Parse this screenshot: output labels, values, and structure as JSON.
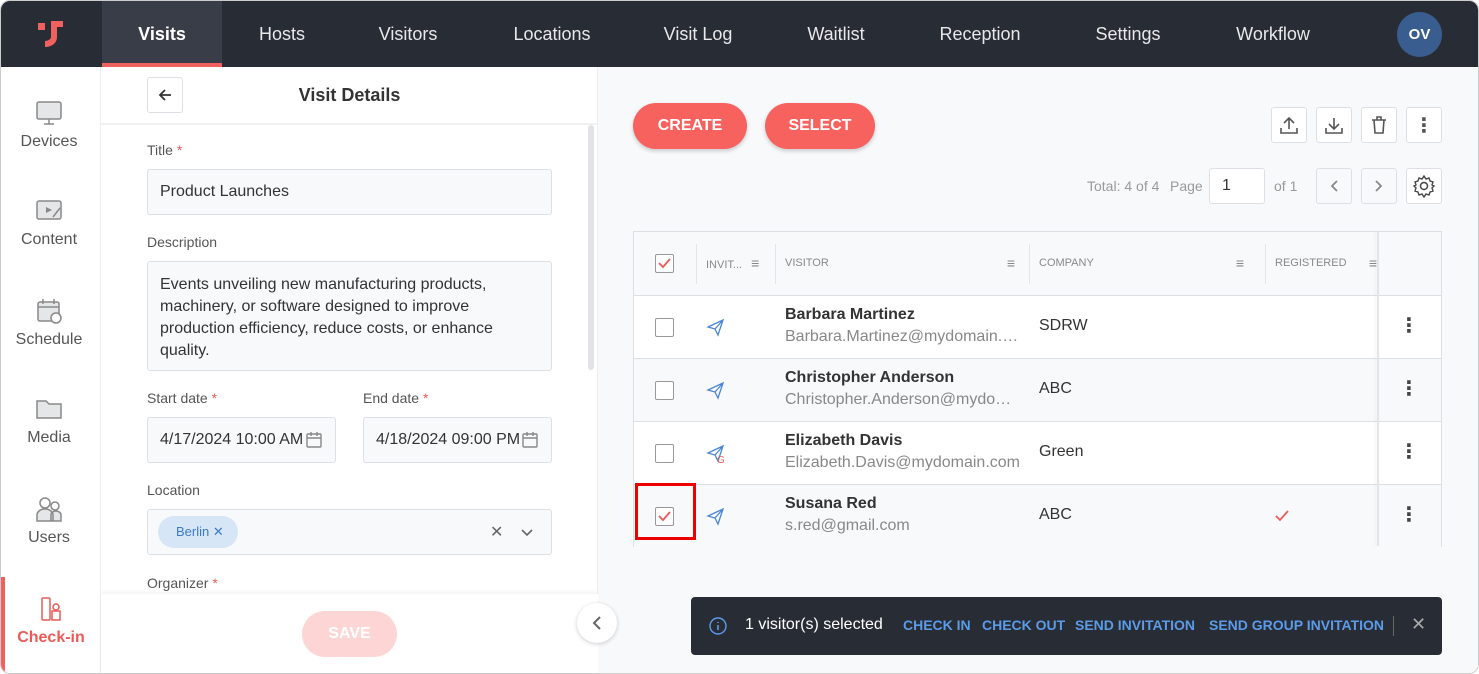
{
  "nav": {
    "items": [
      "Visits",
      "Hosts",
      "Visitors",
      "Locations",
      "Visit Log",
      "Waitlist",
      "Reception",
      "Settings",
      "Workflow"
    ],
    "active": "Visits",
    "avatar": "OV"
  },
  "sidebar": {
    "items": [
      "Devices",
      "Content",
      "Schedule",
      "Media",
      "Users",
      "Check-in"
    ],
    "active": "Check-in"
  },
  "form": {
    "title": "Visit Details",
    "title_label": "Title",
    "title_value": "Product Launches",
    "description_label": "Description",
    "description_value": "Events unveiling new manufacturing products, machinery, or software designed to improve production efficiency, reduce costs, or enhance quality.",
    "start_label": "Start date",
    "start_value": "4/17/2024 10:00 AM",
    "end_label": "End date",
    "end_value": "4/18/2024 09:00 PM",
    "location_label": "Location",
    "location_chip": "Berlin",
    "organizer_label": "Organizer",
    "required_mark": "*",
    "save": "SAVE"
  },
  "toolbar": {
    "create": "CREATE",
    "select": "SELECT",
    "total": "Total: 4 of 4",
    "page_label": "Page",
    "page_value": "1",
    "of": "of 1"
  },
  "table": {
    "headers": [
      "INVIT...",
      "VISITOR",
      "COMPANY",
      "REGISTERED"
    ],
    "rows": [
      {
        "name": "Barbara Martinez",
        "email": "Barbara.Martinez@mydomain.com",
        "company": "SDRW",
        "checked": false,
        "registered": false,
        "invite": "send"
      },
      {
        "name": "Christopher Anderson",
        "email": "Christopher.Anderson@mydomain.com",
        "company": "ABC",
        "checked": false,
        "registered": false,
        "invite": "send"
      },
      {
        "name": "Elizabeth Davis",
        "email": "Elizabeth.Davis@mydomain.com",
        "company": "Green",
        "checked": false,
        "registered": false,
        "invite": "send-group"
      },
      {
        "name": "Susana Red",
        "email": "s.red@gmail.com",
        "company": "ABC",
        "checked": true,
        "registered": true,
        "invite": "send"
      }
    ]
  },
  "toast": {
    "message": "1 visitor(s) selected",
    "actions": [
      "CHECK IN",
      "CHECK OUT",
      "SEND INVITATION",
      "SEND GROUP INVITATION"
    ]
  },
  "colors": {
    "accent": "#f7615e",
    "nav": "#272c35",
    "link": "#5b9be8"
  }
}
